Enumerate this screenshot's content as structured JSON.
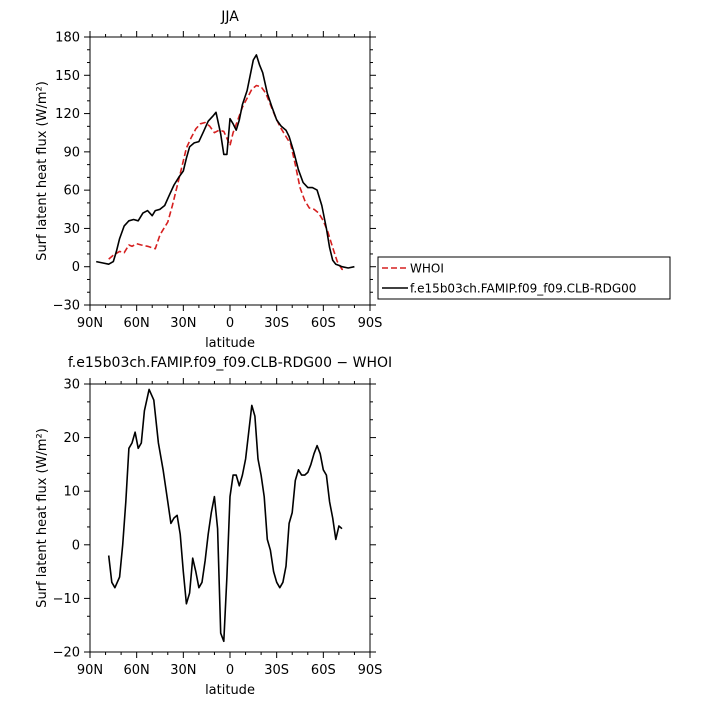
{
  "chart_data": [
    {
      "type": "line",
      "title": "JJA",
      "xlabel": "latitude",
      "ylabel": "Surf latent heat flux (W/m²)",
      "x_tick_labels": [
        "90N",
        "60N",
        "30N",
        "0",
        "30S",
        "60S",
        "90S"
      ],
      "x_ticks": [
        -90,
        -60,
        -30,
        0,
        30,
        60,
        90
      ],
      "xlim": [
        -90,
        90
      ],
      "ylim": [
        -30,
        180
      ],
      "y_ticks": [
        -30,
        0,
        30,
        60,
        90,
        120,
        150,
        180
      ],
      "grid": false,
      "legend_position": "right",
      "series": [
        {
          "name": "WHOI",
          "color": "#d62020",
          "style": "dashed",
          "points": [
            [
              -78,
              6
            ],
            [
              -75,
              9
            ],
            [
              -71,
              12
            ],
            [
              -68,
              11
            ],
            [
              -65,
              17
            ],
            [
              -63,
              16
            ],
            [
              -60,
              18
            ],
            [
              -57,
              17
            ],
            [
              -53,
              16
            ],
            [
              -48,
              14
            ],
            [
              -45,
              25
            ],
            [
              -40,
              35
            ],
            [
              -37,
              48
            ],
            [
              -34,
              63
            ],
            [
              -31,
              78
            ],
            [
              -28,
              93
            ],
            [
              -25,
              101
            ],
            [
              -22,
              108
            ],
            [
              -19,
              112
            ],
            [
              -16,
              113
            ],
            [
              -13,
              110
            ],
            [
              -10,
              105
            ],
            [
              -7,
              107
            ],
            [
              -4,
              106
            ],
            [
              -1,
              98
            ],
            [
              0,
              95
            ],
            [
              2,
              105
            ],
            [
              5,
              115
            ],
            [
              8,
              125
            ],
            [
              11,
              132
            ],
            [
              14,
              139
            ],
            [
              17,
              142
            ],
            [
              20,
              141
            ],
            [
              23,
              136
            ],
            [
              26,
              127
            ],
            [
              29,
              118
            ],
            [
              32,
              110
            ],
            [
              35,
              104
            ],
            [
              39,
              96
            ],
            [
              42,
              80
            ],
            [
              45,
              62
            ],
            [
              48,
              52
            ],
            [
              51,
              46
            ],
            [
              54,
              45
            ],
            [
              57,
              42
            ],
            [
              60,
              36
            ],
            [
              63,
              27
            ],
            [
              66,
              15
            ],
            [
              69,
              4
            ],
            [
              72,
              -2
            ],
            [
              74,
              -2
            ]
          ]
        },
        {
          "name": "f.e15b03ch.FAMIP.f09_f09.CLB-RDG00",
          "color": "#000000",
          "style": "solid",
          "points": [
            [
              -86,
              4
            ],
            [
              -82,
              3
            ],
            [
              -78,
              2
            ],
            [
              -75,
              4
            ],
            [
              -73,
              12
            ],
            [
              -71,
              22
            ],
            [
              -68,
              32
            ],
            [
              -65,
              36
            ],
            [
              -62,
              37
            ],
            [
              -59,
              36
            ],
            [
              -56,
              42
            ],
            [
              -53,
              44
            ],
            [
              -50,
              40
            ],
            [
              -48,
              44
            ],
            [
              -45,
              45
            ],
            [
              -42,
              48
            ],
            [
              -39,
              56
            ],
            [
              -36,
              64
            ],
            [
              -33,
              70
            ],
            [
              -30,
              75
            ],
            [
              -28,
              85
            ],
            [
              -26,
              94
            ],
            [
              -23,
              97
            ],
            [
              -20,
              98
            ],
            [
              -17,
              106
            ],
            [
              -14,
              114
            ],
            [
              -11,
              118
            ],
            [
              -9,
              121
            ],
            [
              -6,
              104
            ],
            [
              -4,
              88
            ],
            [
              -2,
              88
            ],
            [
              0,
              116
            ],
            [
              2,
              112
            ],
            [
              4,
              107
            ],
            [
              6,
              115
            ],
            [
              8,
              127
            ],
            [
              11,
              138
            ],
            [
              13,
              150
            ],
            [
              15,
              162
            ],
            [
              17,
              166
            ],
            [
              19,
              158
            ],
            [
              21,
              152
            ],
            [
              24,
              136
            ],
            [
              27,
              125
            ],
            [
              30,
              115
            ],
            [
              33,
              110
            ],
            [
              36,
              107
            ],
            [
              38,
              102
            ],
            [
              41,
              90
            ],
            [
              44,
              76
            ],
            [
              47,
              66
            ],
            [
              50,
              62
            ],
            [
              53,
              62
            ],
            [
              56,
              60
            ],
            [
              59,
              48
            ],
            [
              62,
              30
            ],
            [
              64,
              15
            ],
            [
              66,
              5
            ],
            [
              68,
              2
            ],
            [
              70,
              1
            ],
            [
              72,
              0
            ],
            [
              76,
              -1
            ],
            [
              80,
              0
            ]
          ]
        }
      ]
    },
    {
      "type": "line",
      "title": "f.e15b03ch.FAMIP.f09_f09.CLB-RDG00 − WHOI",
      "xlabel": "latitude",
      "ylabel": "Surf latent heat flux (W/m²)",
      "x_tick_labels": [
        "90N",
        "60N",
        "30N",
        "0",
        "30S",
        "60S",
        "90S"
      ],
      "x_ticks": [
        -90,
        -60,
        -30,
        0,
        30,
        60,
        90
      ],
      "xlim": [
        -90,
        90
      ],
      "ylim": [
        -20,
        30
      ],
      "y_ticks": [
        -20,
        -10,
        0,
        10,
        20,
        30
      ],
      "grid": false,
      "series": [
        {
          "color": "#000000",
          "style": "solid",
          "points": [
            [
              -78,
              -2
            ],
            [
              -76,
              -7
            ],
            [
              -74,
              -8
            ],
            [
              -71,
              -6
            ],
            [
              -69,
              0
            ],
            [
              -67,
              8
            ],
            [
              -65,
              18
            ],
            [
              -63,
              19
            ],
            [
              -61,
              21
            ],
            [
              -59,
              18
            ],
            [
              -57,
              19
            ],
            [
              -55,
              25
            ],
            [
              -52,
              29
            ],
            [
              -49,
              27
            ],
            [
              -46,
              19
            ],
            [
              -43,
              14
            ],
            [
              -40,
              8
            ],
            [
              -38,
              4
            ],
            [
              -36,
              5
            ],
            [
              -34,
              5.5
            ],
            [
              -32,
              2
            ],
            [
              -30,
              -5
            ],
            [
              -28,
              -11
            ],
            [
              -26,
              -9
            ],
            [
              -24,
              -2.5
            ],
            [
              -22,
              -5
            ],
            [
              -20,
              -8
            ],
            [
              -18,
              -7
            ],
            [
              -16,
              -3
            ],
            [
              -14,
              2
            ],
            [
              -12,
              6
            ],
            [
              -10,
              9
            ],
            [
              -8,
              3
            ],
            [
              -6,
              -16.5
            ],
            [
              -4,
              -18
            ],
            [
              -2,
              -6
            ],
            [
              0,
              9
            ],
            [
              2,
              13
            ],
            [
              4,
              13
            ],
            [
              6,
              11
            ],
            [
              8,
              13
            ],
            [
              10,
              16
            ],
            [
              12,
              21
            ],
            [
              14,
              26
            ],
            [
              16,
              24
            ],
            [
              18,
              16
            ],
            [
              20,
              13
            ],
            [
              22,
              9
            ],
            [
              24,
              1
            ],
            [
              26,
              -1
            ],
            [
              28,
              -5
            ],
            [
              30,
              -7
            ],
            [
              32,
              -8
            ],
            [
              34,
              -7
            ],
            [
              36,
              -4
            ],
            [
              38,
              4
            ],
            [
              40,
              6
            ],
            [
              42,
              12
            ],
            [
              44,
              14
            ],
            [
              46,
              13
            ],
            [
              48,
              13
            ],
            [
              50,
              13.5
            ],
            [
              52,
              15
            ],
            [
              54,
              17
            ],
            [
              56,
              18.5
            ],
            [
              58,
              17
            ],
            [
              60,
              14
            ],
            [
              62,
              13
            ],
            [
              64,
              8
            ],
            [
              66,
              5
            ],
            [
              68,
              1
            ],
            [
              70,
              3.5
            ],
            [
              72,
              3
            ]
          ]
        }
      ]
    }
  ]
}
